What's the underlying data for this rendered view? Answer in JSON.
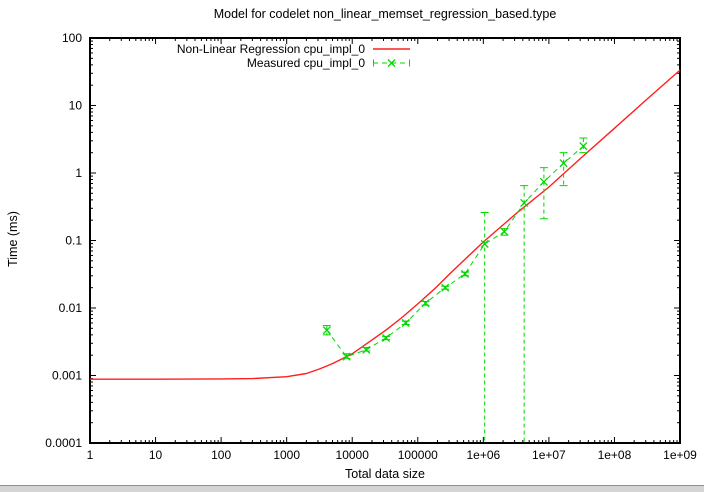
{
  "chart_data": {
    "type": "line",
    "title": "Model for codelet non_linear_memset_regression_based.type",
    "xlabel": "Total data size",
    "ylabel": "Time (ms)",
    "x_scale": "log",
    "y_scale": "log",
    "xlim": [
      1,
      1000000000
    ],
    "ylim": [
      0.0001,
      100
    ],
    "grid": false,
    "legend_position": "top-inside",
    "x_tick_labels": [
      "1",
      "10",
      "100",
      "1000",
      "10000",
      "100000",
      "1e+06",
      "1e+07",
      "1e+08",
      "1e+09"
    ],
    "x_tick_values": [
      1,
      10,
      100,
      1000,
      10000,
      100000,
      1000000,
      10000000,
      100000000,
      1000000000
    ],
    "y_tick_labels": [
      "100",
      "10",
      "1",
      "0.1",
      "0.01",
      "0.001",
      "0.0001"
    ],
    "y_tick_values": [
      100,
      10,
      1,
      0.1,
      0.01,
      0.001,
      0.0001
    ],
    "series": [
      {
        "name": "Non-Linear Regression cpu_impl_0",
        "kind": "regression-line",
        "color": "#ff1f1f",
        "line_style": "solid",
        "x": [
          1,
          10,
          100,
          300,
          1000,
          2000,
          3162,
          5000,
          10000,
          17783,
          31623,
          56234,
          100000,
          177828,
          316228,
          562341,
          1000000,
          3162278,
          10000000,
          31622777,
          100000000,
          316227766,
          1000000000
        ],
        "y": [
          0.00088,
          0.00088,
          0.00089,
          0.0009,
          0.00096,
          0.00107,
          0.00125,
          0.0015,
          0.0021,
          0.0031,
          0.0046,
          0.0071,
          0.0115,
          0.019,
          0.033,
          0.056,
          0.095,
          0.25,
          0.62,
          1.7,
          4.6,
          12.5,
          33.5
        ]
      },
      {
        "name": "Measured cpu_impl_0",
        "kind": "measured-errorbars",
        "color": "#00d800",
        "line_style": "dashed",
        "marker": "x",
        "x": [
          4096,
          8192,
          16384,
          32768,
          65536,
          131072,
          262144,
          524288,
          1048576,
          2097152,
          4194304,
          8388608,
          16777216,
          33554432
        ],
        "y": [
          0.0047,
          0.0019,
          0.0024,
          0.0036,
          0.006,
          0.0118,
          0.02,
          0.032,
          0.089,
          0.135,
          0.36,
          0.74,
          1.4,
          2.5
        ],
        "y_err_low": [
          0.004,
          0.0018,
          0.0023,
          0.0034,
          0.0057,
          0.011,
          0.019,
          0.03,
          null,
          0.12,
          null,
          0.21,
          0.65,
          2.0
        ],
        "y_err_high": [
          0.0055,
          0.0021,
          0.0026,
          0.0038,
          0.0064,
          0.0125,
          0.021,
          0.034,
          0.26,
          0.15,
          0.65,
          1.2,
          2.0,
          3.3
        ]
      }
    ]
  }
}
